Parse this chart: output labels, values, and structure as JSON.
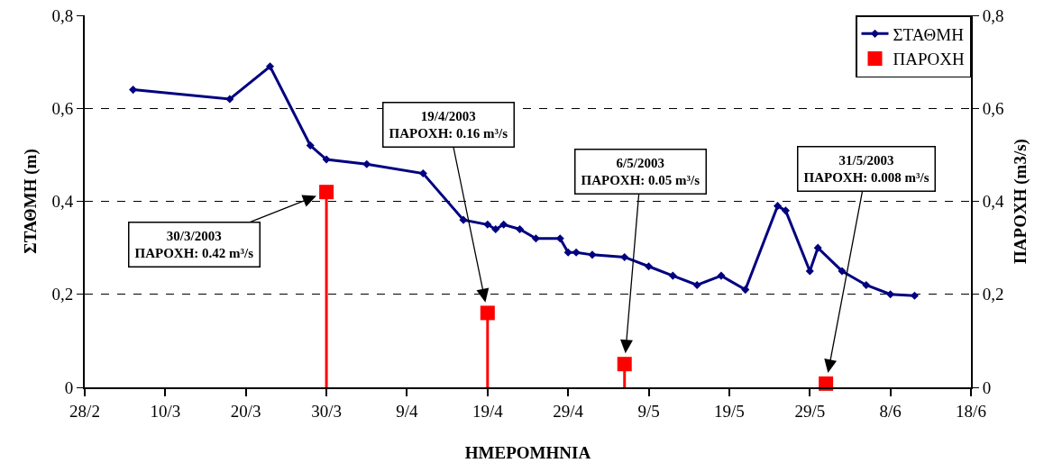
{
  "chart_data": {
    "type": "line",
    "xlabel": "ΗΜΕΡΟΜΗΝΙΑ",
    "ylabel": "ΣΤΑΘΜΗ (m)",
    "y2label": "ΠΑΡΟΧΗ (m3/s)",
    "xlim": [
      "2003-02-28",
      "2003-06-18"
    ],
    "xticks": [
      {
        "value": "2003-02-28",
        "label": "28/2"
      },
      {
        "value": "2003-03-10",
        "label": "10/3"
      },
      {
        "value": "2003-03-20",
        "label": "20/3"
      },
      {
        "value": "2003-03-30",
        "label": "30/3"
      },
      {
        "value": "2003-04-09",
        "label": "9/4"
      },
      {
        "value": "2003-04-19",
        "label": "19/4"
      },
      {
        "value": "2003-04-29",
        "label": "29/4"
      },
      {
        "value": "2003-05-09",
        "label": "9/5"
      },
      {
        "value": "2003-05-19",
        "label": "19/5"
      },
      {
        "value": "2003-05-29",
        "label": "29/5"
      },
      {
        "value": "2003-06-08",
        "label": "8/6"
      },
      {
        "value": "2003-06-18",
        "label": "18/6"
      }
    ],
    "ylim": [
      0,
      0.8
    ],
    "yticks": [
      0,
      {
        "value": 0.2,
        "label": "0,2"
      },
      {
        "value": 0.4,
        "label": "0,4"
      },
      {
        "value": 0.6,
        "label": "0,6"
      },
      {
        "value": 0.8,
        "label": "0,8"
      }
    ],
    "y2lim": [
      0,
      0.8
    ],
    "y2ticks": [
      0,
      {
        "value": 0.2,
        "label": "0,2"
      },
      {
        "value": 0.4,
        "label": "0,4"
      },
      {
        "value": 0.6,
        "label": "0,6"
      },
      {
        "value": 0.8,
        "label": "0,8"
      }
    ],
    "grid": "y",
    "legend": "top right",
    "line_style": "solid",
    "series": [
      {
        "name": "ΣΤΑΘΜΗ",
        "color": "#000080",
        "marker": "diamond",
        "x": [
          "2003-03-06",
          "2003-03-18",
          "2003-03-23",
          "2003-03-28",
          "2003-03-30",
          "2003-04-04",
          "2003-04-11",
          "2003-04-16",
          "2003-04-19",
          "2003-04-20",
          "2003-04-21",
          "2003-04-23",
          "2003-04-25",
          "2003-04-28",
          "2003-04-29",
          "2003-04-30",
          "2003-05-02",
          "2003-05-06",
          "2003-05-09",
          "2003-05-12",
          "2003-05-15",
          "2003-05-18",
          "2003-05-21",
          "2003-05-25",
          "2003-05-26",
          "2003-05-29",
          "2003-05-30",
          "2003-06-02",
          "2003-06-05",
          "2003-06-08",
          "2003-06-11"
        ],
        "values": [
          0.64,
          0.62,
          0.69,
          0.52,
          0.49,
          0.48,
          0.46,
          0.36,
          0.35,
          0.34,
          0.35,
          0.34,
          0.32,
          0.32,
          0.29,
          0.29,
          0.285,
          0.28,
          0.26,
          0.24,
          0.22,
          0.24,
          0.21,
          0.39,
          0.38,
          0.25,
          0.3,
          0.25,
          0.22,
          0.2,
          0.197
        ]
      },
      {
        "name": "ΠΑΡΟΧΗ",
        "type": "lollipop",
        "axis": "y2",
        "color": "#ff0000",
        "marker": "square",
        "x": [
          "2003-03-30",
          "2003-04-19",
          "2003-05-06",
          "2003-05-31"
        ],
        "values": [
          0.42,
          0.16,
          0.05,
          0.008
        ]
      }
    ],
    "annotations": [
      {
        "text": "30/3/2003\nΠΑΡΟΧΗ: 0.42 m³/s",
        "x": "2003-03-30",
        "y": 0.42
      },
      {
        "text": "19/4/2003\nΠΑΡΟΧΗ: 0.16 m³/s",
        "x": "2003-04-19",
        "y": 0.16
      },
      {
        "text": "6/5/2003\nΠΑΡΟΧΗ: 0.05 m³/s",
        "x": "2003-05-06",
        "y": 0.05
      },
      {
        "text": "31/5/2003\nΠΑΡΟΧΗ: 0.008 m³/s",
        "x": "2003-05-31",
        "y": 0.008
      }
    ]
  }
}
